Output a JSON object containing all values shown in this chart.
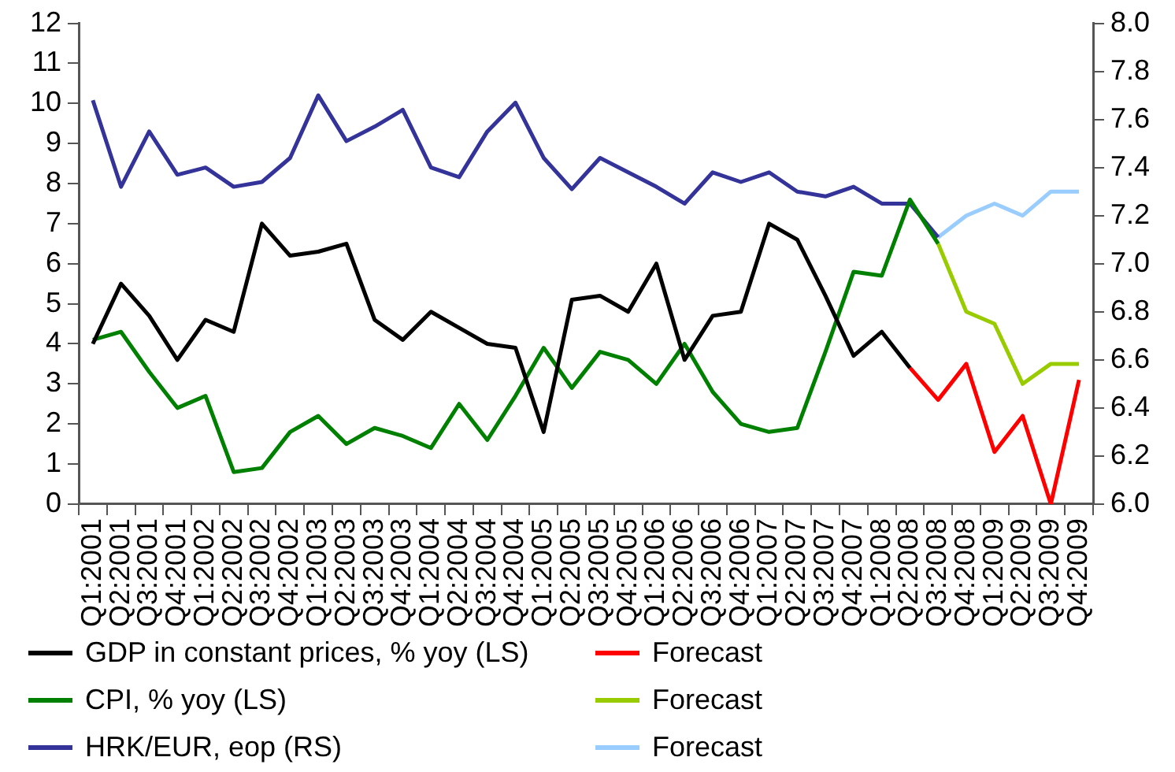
{
  "chart_data": {
    "type": "line",
    "categories": [
      "Q1:2001",
      "Q2:2001",
      "Q3:2001",
      "Q4:2001",
      "Q1:2002",
      "Q2:2002",
      "Q3:2002",
      "Q4:2002",
      "Q1:2003",
      "Q2:2003",
      "Q3:2003",
      "Q4:2003",
      "Q1:2004",
      "Q2:2004",
      "Q3:2004",
      "Q4:2004",
      "Q1:2005",
      "Q2:2005",
      "Q3:2005",
      "Q4:2005",
      "Q1:2006",
      "Q2:2006",
      "Q3:2006",
      "Q4:2006",
      "Q1:2007",
      "Q2:2007",
      "Q3:2007",
      "Q4:2007",
      "Q1:2008",
      "Q2:2008",
      "Q3:2008",
      "Q4:2008",
      "Q1:2009",
      "Q2:2009",
      "Q3:2009",
      "Q4:2009"
    ],
    "series": [
      {
        "name": "GDP in constant prices, % yoy (LS)",
        "color": "#000000",
        "values": [
          4.0,
          5.5,
          4.7,
          3.6,
          4.6,
          4.3,
          7.0,
          6.2,
          6.3,
          6.5,
          4.6,
          4.1,
          4.8,
          4.4,
          4.0,
          3.9,
          1.8,
          5.1,
          5.2,
          4.8,
          6.0,
          3.6,
          4.7,
          4.8,
          7.0,
          6.6,
          5.2,
          3.7,
          4.3,
          3.4,
          null,
          null,
          null,
          null,
          null,
          null
        ]
      },
      {
        "name": "Forecast",
        "color": "#ff0000",
        "values": [
          null,
          null,
          null,
          null,
          null,
          null,
          null,
          null,
          null,
          null,
          null,
          null,
          null,
          null,
          null,
          null,
          null,
          null,
          null,
          null,
          null,
          null,
          null,
          null,
          null,
          null,
          null,
          null,
          null,
          3.4,
          2.6,
          3.5,
          1.3,
          2.2,
          0,
          3.1
        ]
      },
      {
        "name": "CPI, % yoy (LS)",
        "color": "#008000",
        "values": [
          4.1,
          4.3,
          3.3,
          2.4,
          2.7,
          0.8,
          0.9,
          1.8,
          2.2,
          1.5,
          1.9,
          1.7,
          1.4,
          2.5,
          1.6,
          2.7,
          3.9,
          2.9,
          3.8,
          3.6,
          3.0,
          4.0,
          2.8,
          2.0,
          1.8,
          1.9,
          3.8,
          5.8,
          5.7,
          7.6,
          6.5,
          null,
          null,
          null,
          null,
          null
        ]
      },
      {
        "name": "Forecast",
        "color": "#99cc00",
        "values": [
          null,
          null,
          null,
          null,
          null,
          null,
          null,
          null,
          null,
          null,
          null,
          null,
          null,
          null,
          null,
          null,
          null,
          null,
          null,
          null,
          null,
          null,
          null,
          null,
          null,
          null,
          null,
          null,
          null,
          null,
          6.5,
          4.8,
          4.5,
          3.0,
          3.5,
          3.5
        ]
      },
      {
        "name": "HRK/EUR, eop (RS)",
        "color": "#333399",
        "axis": "y2",
        "values": [
          7.68,
          7.32,
          7.55,
          7.37,
          7.4,
          7.32,
          7.34,
          7.44,
          7.7,
          7.51,
          7.57,
          7.64,
          7.4,
          7.36,
          7.55,
          7.67,
          7.44,
          7.31,
          7.44,
          7.38,
          7.32,
          7.25,
          7.38,
          7.34,
          7.38,
          7.3,
          7.28,
          7.32,
          7.25,
          7.25,
          7.11,
          null,
          null,
          null,
          null,
          null
        ]
      },
      {
        "name": "Forecast",
        "color": "#99ccff",
        "axis": "y2",
        "values": [
          null,
          null,
          null,
          null,
          null,
          null,
          null,
          null,
          null,
          null,
          null,
          null,
          null,
          null,
          null,
          null,
          null,
          null,
          null,
          null,
          null,
          null,
          null,
          null,
          null,
          null,
          null,
          null,
          null,
          null,
          7.11,
          7.2,
          7.25,
          7.2,
          7.3,
          7.3
        ]
      }
    ],
    "ylim": [
      0,
      12
    ],
    "yticks": [
      0,
      1,
      2,
      3,
      4,
      5,
      6,
      7,
      8,
      9,
      10,
      11,
      12
    ],
    "y2lim": [
      6,
      8
    ],
    "y2ticks": [
      {
        "value": 6,
        "label": "6.0"
      },
      {
        "value": 6.2,
        "label": "6.2"
      },
      {
        "value": 6.4,
        "label": "6.4"
      },
      {
        "value": 6.6,
        "label": "6.6"
      },
      {
        "value": 6.8,
        "label": "6.8"
      },
      {
        "value": 7,
        "label": "7.0"
      },
      {
        "value": 7.2,
        "label": "7.2"
      },
      {
        "value": 7.4,
        "label": "7.4"
      },
      {
        "value": 7.6,
        "label": "7.6"
      },
      {
        "value": 7.8,
        "label": "7.8"
      },
      {
        "value": 8,
        "label": "8.0"
      }
    ],
    "grid": false,
    "legend": "bottom",
    "marker": "none",
    "line_style": "solid"
  }
}
